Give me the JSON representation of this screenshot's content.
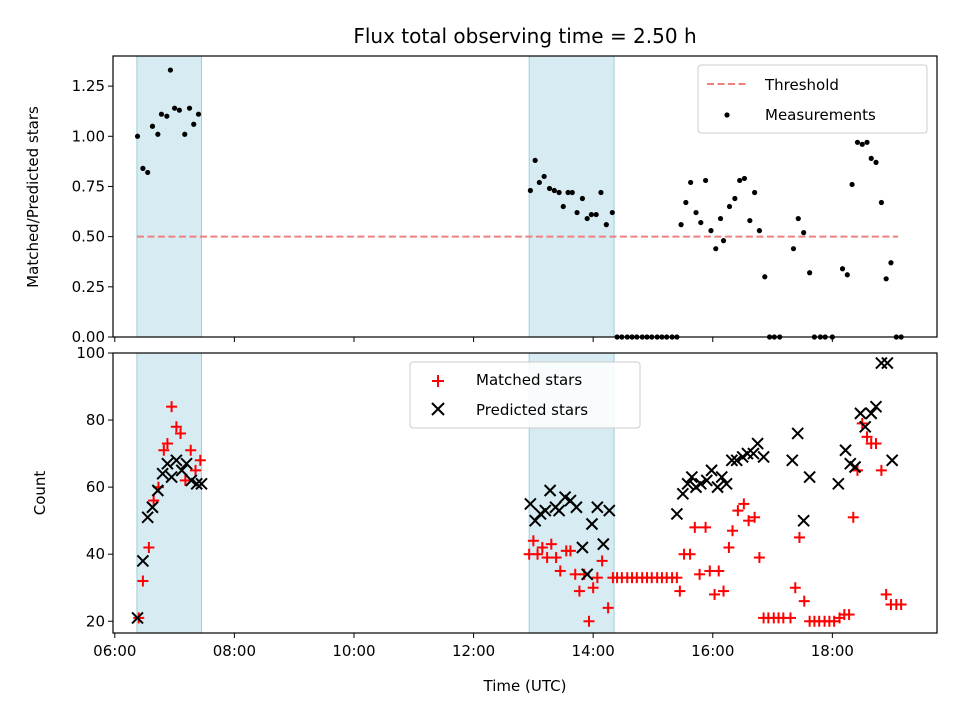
{
  "chart_data": [
    {
      "type": "scatter",
      "title": "Flux total observing time = 2.50 h",
      "xlabel": "",
      "ylabel": "Matched/Predicted stars",
      "xlim": [
        5.97,
        19.75
      ],
      "ylim": [
        0,
        1.4
      ],
      "yticks": [
        "0.00",
        "0.25",
        "0.50",
        "0.75",
        "1.00",
        "1.25"
      ],
      "legend_position": "top-right",
      "shaded_intervals": [
        [
          6.37,
          7.45
        ],
        [
          12.93,
          14.35
        ]
      ],
      "threshold": {
        "name": "Threshold",
        "value": 0.5,
        "x_range": [
          6.37,
          19.1
        ],
        "color": "#f08080"
      },
      "series": [
        {
          "name": "Measurements",
          "color": "#000000",
          "points": [
            [
              6.38,
              1.0
            ],
            [
              6.47,
              0.84
            ],
            [
              6.55,
              0.82
            ],
            [
              6.63,
              1.05
            ],
            [
              6.72,
              1.01
            ],
            [
              6.78,
              1.11
            ],
            [
              6.87,
              1.1
            ],
            [
              6.93,
              1.33
            ],
            [
              7.0,
              1.14
            ],
            [
              7.08,
              1.13
            ],
            [
              7.17,
              1.01
            ],
            [
              7.25,
              1.14
            ],
            [
              7.32,
              1.06
            ],
            [
              7.4,
              1.11
            ],
            [
              12.95,
              0.73
            ],
            [
              13.03,
              0.88
            ],
            [
              13.1,
              0.77
            ],
            [
              13.18,
              0.8
            ],
            [
              13.27,
              0.74
            ],
            [
              13.35,
              0.73
            ],
            [
              13.43,
              0.72
            ],
            [
              13.5,
              0.65
            ],
            [
              13.58,
              0.72
            ],
            [
              13.65,
              0.72
            ],
            [
              13.73,
              0.62
            ],
            [
              13.82,
              0.69
            ],
            [
              13.9,
              0.59
            ],
            [
              13.97,
              0.61
            ],
            [
              14.05,
              0.61
            ],
            [
              14.13,
              0.72
            ],
            [
              14.22,
              0.56
            ],
            [
              14.32,
              0.62
            ],
            [
              14.4,
              0.0
            ],
            [
              14.48,
              0.0
            ],
            [
              14.57,
              0.0
            ],
            [
              14.65,
              0.0
            ],
            [
              14.73,
              0.0
            ],
            [
              14.82,
              0.0
            ],
            [
              14.9,
              0.0
            ],
            [
              14.98,
              0.0
            ],
            [
              15.07,
              0.0
            ],
            [
              15.15,
              0.0
            ],
            [
              15.23,
              0.0
            ],
            [
              15.32,
              0.0
            ],
            [
              15.4,
              0.0
            ],
            [
              15.47,
              0.56
            ],
            [
              15.55,
              0.67
            ],
            [
              15.63,
              0.77
            ],
            [
              15.72,
              0.62
            ],
            [
              15.8,
              0.57
            ],
            [
              15.88,
              0.78
            ],
            [
              15.97,
              0.53
            ],
            [
              16.05,
              0.44
            ],
            [
              16.13,
              0.59
            ],
            [
              16.18,
              0.48
            ],
            [
              16.28,
              0.65
            ],
            [
              16.37,
              0.69
            ],
            [
              16.45,
              0.78
            ],
            [
              16.53,
              0.79
            ],
            [
              16.62,
              0.58
            ],
            [
              16.7,
              0.72
            ],
            [
              16.78,
              0.53
            ],
            [
              16.87,
              0.3
            ],
            [
              16.95,
              0.0
            ],
            [
              17.03,
              0.0
            ],
            [
              17.12,
              0.0
            ],
            [
              17.35,
              0.44
            ],
            [
              17.43,
              0.59
            ],
            [
              17.52,
              0.52
            ],
            [
              17.62,
              0.32
            ],
            [
              17.7,
              0.0
            ],
            [
              17.8,
              0.0
            ],
            [
              17.88,
              0.0
            ],
            [
              18.0,
              0.0
            ],
            [
              18.17,
              0.34
            ],
            [
              18.25,
              0.31
            ],
            [
              18.33,
              0.76
            ],
            [
              18.42,
              0.97
            ],
            [
              18.5,
              0.96
            ],
            [
              18.58,
              0.97
            ],
            [
              18.65,
              0.89
            ],
            [
              18.73,
              0.87
            ],
            [
              18.82,
              0.67
            ],
            [
              18.9,
              0.29
            ],
            [
              18.98,
              0.37
            ],
            [
              19.07,
              0.0
            ],
            [
              19.15,
              0.0
            ]
          ]
        }
      ]
    },
    {
      "type": "scatter",
      "title": "",
      "xlabel": "Time (UTC)",
      "ylabel": "Count",
      "xlim": [
        5.97,
        19.75
      ],
      "ylim": [
        16.5,
        100
      ],
      "xticks": [
        "06:00",
        "08:00",
        "10:00",
        "12:00",
        "14:00",
        "16:00",
        "18:00"
      ],
      "yticks": [
        "20",
        "40",
        "60",
        "80",
        "100"
      ],
      "legend_position": "top-center",
      "shaded_intervals": [
        [
          6.37,
          7.45
        ],
        [
          12.93,
          14.35
        ]
      ],
      "series": [
        {
          "name": "Matched stars",
          "color": "#ff0000",
          "marker": "+",
          "points": [
            [
              6.4,
              21
            ],
            [
              6.47,
              32
            ],
            [
              6.57,
              42
            ],
            [
              6.65,
              56
            ],
            [
              6.73,
              60
            ],
            [
              6.82,
              71
            ],
            [
              6.88,
              73
            ],
            [
              6.95,
              84
            ],
            [
              7.03,
              78
            ],
            [
              7.1,
              76
            ],
            [
              7.18,
              62
            ],
            [
              7.27,
              71
            ],
            [
              7.35,
              65
            ],
            [
              7.43,
              68
            ],
            [
              12.93,
              40
            ],
            [
              13.0,
              44
            ],
            [
              13.07,
              40
            ],
            [
              13.15,
              42
            ],
            [
              13.23,
              39
            ],
            [
              13.3,
              43
            ],
            [
              13.38,
              39
            ],
            [
              13.45,
              35
            ],
            [
              13.55,
              41
            ],
            [
              13.62,
              41
            ],
            [
              13.7,
              34
            ],
            [
              13.77,
              29
            ],
            [
              13.85,
              34
            ],
            [
              13.93,
              20
            ],
            [
              14.0,
              30
            ],
            [
              14.07,
              33
            ],
            [
              14.15,
              38
            ],
            [
              14.25,
              24
            ],
            [
              14.33,
              33
            ],
            [
              14.4,
              33
            ],
            [
              14.48,
              33
            ],
            [
              14.57,
              33
            ],
            [
              14.65,
              33
            ],
            [
              14.73,
              33
            ],
            [
              14.82,
              33
            ],
            [
              14.9,
              33
            ],
            [
              14.98,
              33
            ],
            [
              15.07,
              33
            ],
            [
              15.15,
              33
            ],
            [
              15.23,
              33
            ],
            [
              15.32,
              33
            ],
            [
              15.4,
              33
            ],
            [
              15.45,
              29
            ],
            [
              15.52,
              40
            ],
            [
              15.62,
              40
            ],
            [
              15.7,
              48
            ],
            [
              15.78,
              34
            ],
            [
              15.88,
              48
            ],
            [
              15.95,
              35
            ],
            [
              16.03,
              28
            ],
            [
              16.1,
              35
            ],
            [
              16.18,
              29
            ],
            [
              16.27,
              42
            ],
            [
              16.33,
              47
            ],
            [
              16.42,
              53
            ],
            [
              16.52,
              55
            ],
            [
              16.6,
              50
            ],
            [
              16.7,
              51
            ],
            [
              16.78,
              39
            ],
            [
              16.85,
              21
            ],
            [
              16.93,
              21
            ],
            [
              17.02,
              21
            ],
            [
              17.1,
              21
            ],
            [
              17.18,
              21
            ],
            [
              17.3,
              21
            ],
            [
              17.38,
              30
            ],
            [
              17.45,
              45
            ],
            [
              17.53,
              26
            ],
            [
              17.62,
              20
            ],
            [
              17.7,
              20
            ],
            [
              17.78,
              20
            ],
            [
              17.87,
              20
            ],
            [
              17.95,
              20
            ],
            [
              18.03,
              20
            ],
            [
              18.12,
              21
            ],
            [
              18.2,
              22
            ],
            [
              18.28,
              22
            ],
            [
              18.35,
              51
            ],
            [
              18.42,
              65
            ],
            [
              18.5,
              79
            ],
            [
              18.58,
              75
            ],
            [
              18.65,
              73
            ],
            [
              18.73,
              73
            ],
            [
              18.82,
              65
            ],
            [
              18.9,
              28
            ],
            [
              18.98,
              25
            ],
            [
              19.07,
              25
            ],
            [
              19.15,
              25
            ]
          ]
        },
        {
          "name": "Predicted stars",
          "color": "#000000",
          "marker": "x",
          "points": [
            [
              6.38,
              21
            ],
            [
              6.47,
              38
            ],
            [
              6.55,
              51
            ],
            [
              6.63,
              54
            ],
            [
              6.72,
              59
            ],
            [
              6.8,
              64
            ],
            [
              6.88,
              67
            ],
            [
              6.95,
              63
            ],
            [
              7.03,
              68
            ],
            [
              7.12,
              65
            ],
            [
              7.2,
              67
            ],
            [
              7.28,
              62
            ],
            [
              7.37,
              61
            ],
            [
              7.45,
              61
            ],
            [
              12.95,
              55
            ],
            [
              13.03,
              50
            ],
            [
              13.12,
              52
            ],
            [
              13.2,
              53
            ],
            [
              13.28,
              59
            ],
            [
              13.37,
              54
            ],
            [
              13.43,
              53
            ],
            [
              13.53,
              57
            ],
            [
              13.62,
              56
            ],
            [
              13.72,
              54
            ],
            [
              13.82,
              42
            ],
            [
              13.9,
              34
            ],
            [
              13.98,
              49
            ],
            [
              14.07,
              54
            ],
            [
              14.17,
              43
            ],
            [
              14.27,
              53
            ],
            [
              15.4,
              52
            ],
            [
              15.5,
              58
            ],
            [
              15.58,
              61
            ],
            [
              15.65,
              63
            ],
            [
              15.72,
              60
            ],
            [
              15.8,
              61
            ],
            [
              15.9,
              62
            ],
            [
              15.98,
              65
            ],
            [
              16.08,
              60
            ],
            [
              16.15,
              63
            ],
            [
              16.23,
              61
            ],
            [
              16.32,
              68
            ],
            [
              16.4,
              68
            ],
            [
              16.5,
              69
            ],
            [
              16.58,
              70
            ],
            [
              16.68,
              70
            ],
            [
              16.75,
              73
            ],
            [
              16.85,
              69
            ],
            [
              17.33,
              68
            ],
            [
              17.42,
              76
            ],
            [
              17.52,
              50
            ],
            [
              17.62,
              63
            ],
            [
              18.1,
              61
            ],
            [
              18.22,
              71
            ],
            [
              18.3,
              67
            ],
            [
              18.38,
              66
            ],
            [
              18.47,
              82
            ],
            [
              18.55,
              78
            ],
            [
              18.65,
              82
            ],
            [
              18.73,
              84
            ],
            [
              18.82,
              97
            ],
            [
              18.92,
              97
            ],
            [
              19.0,
              68
            ]
          ]
        }
      ]
    }
  ]
}
